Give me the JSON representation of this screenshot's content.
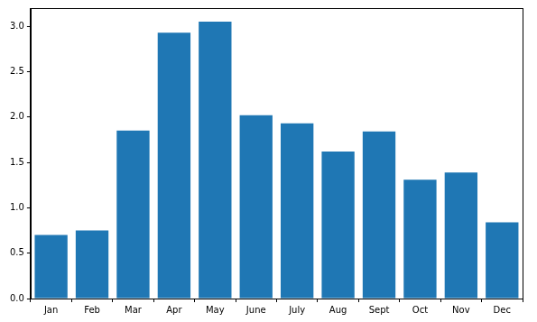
{
  "chart_data": {
    "type": "bar",
    "categories": [
      "Jan",
      "Feb",
      "Mar",
      "Apr",
      "May",
      "June",
      "July",
      "Aug",
      "Sept",
      "Oct",
      "Nov",
      "Dec"
    ],
    "values": [
      0.7,
      0.75,
      1.85,
      2.93,
      3.05,
      2.02,
      1.93,
      1.62,
      1.84,
      1.31,
      1.39,
      0.84
    ],
    "color": "#1f77b4",
    "ylim": [
      0,
      3.2
    ],
    "yticks": [
      {
        "value": 0,
        "label": "0.0"
      },
      {
        "value": 0.5,
        "label": "0.5"
      },
      {
        "value": 1,
        "label": "1.0"
      },
      {
        "value": 1.5,
        "label": "1.5"
      },
      {
        "value": 2,
        "label": "2.0"
      },
      {
        "value": 2.5,
        "label": "2.5"
      },
      {
        "value": 3,
        "label": "3.0"
      }
    ],
    "grid": false
  }
}
